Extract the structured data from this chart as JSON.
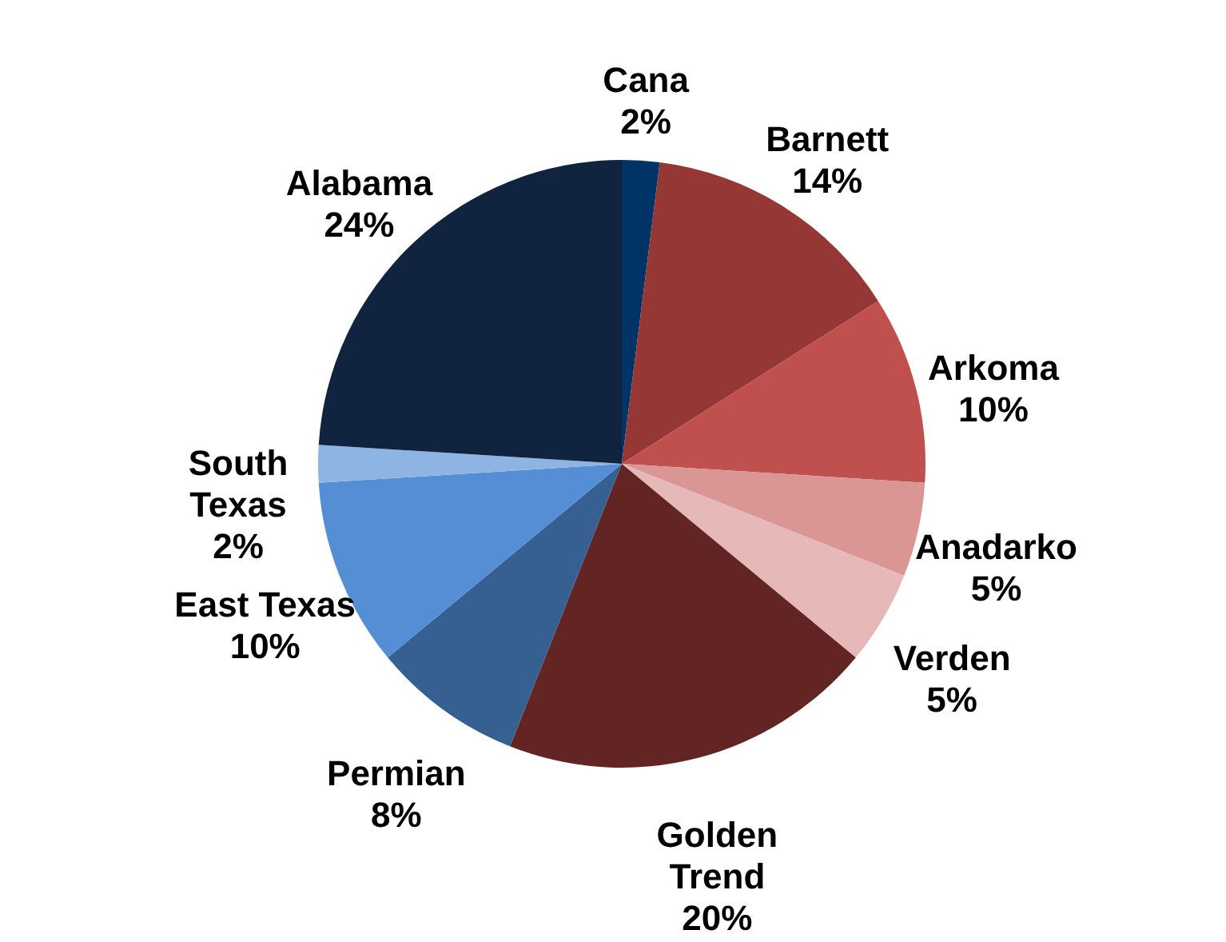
{
  "chart_data": {
    "type": "pie",
    "categories": [
      "Cana",
      "Barnett",
      "Arkoma",
      "Anadarko",
      "Verden",
      "Golden Trend",
      "Permian",
      "East Texas",
      "South Texas",
      "Alabama"
    ],
    "values": [
      2,
      14,
      10,
      5,
      5,
      20,
      8,
      10,
      2,
      24
    ],
    "value_labels": [
      "2%",
      "14%",
      "10%",
      "5%",
      "5%",
      "20%",
      "8%",
      "10%",
      "2%",
      "24%"
    ],
    "colors": [
      "#003366",
      "#953735",
      "#c0504d",
      "#d99694",
      "#e6b9b8",
      "#632523",
      "#366092",
      "#558ed5",
      "#8eb4e3",
      "#10243f"
    ]
  }
}
